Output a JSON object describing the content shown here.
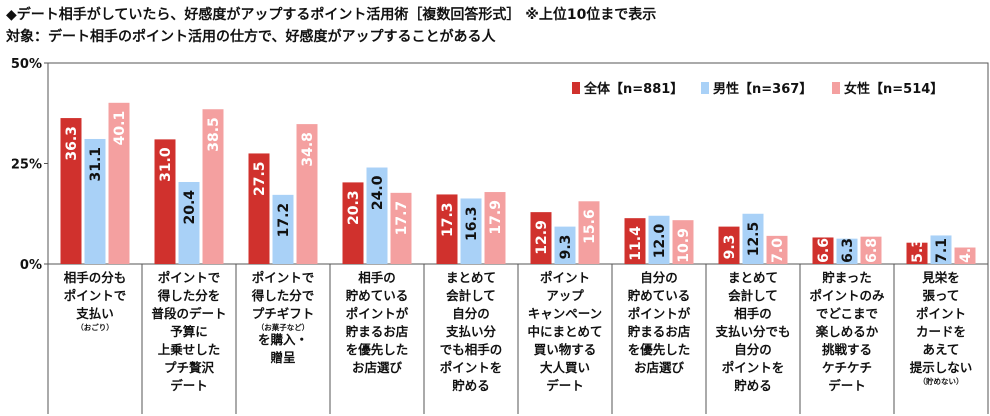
{
  "title_line1": "◆デート相手がしていたら、好感度がアップするポイント活用術［複数回答形式］ ※上位10位まで表示",
  "title_line2": "対象：デート相手のポイント活用の仕方で、好感度がアップすることがある人",
  "chart_data": {
    "type": "bar",
    "ylim": [
      0,
      50
    ],
    "yticks": [
      "0%",
      "25%",
      "50%"
    ],
    "legend_position": "top-right",
    "grid": false,
    "categories": [
      {
        "lines": [
          "相手の分も",
          "ポイントで",
          "支払い"
        ],
        "note": "（おごり）",
        "note_after": 3
      },
      {
        "lines": [
          "ポイントで",
          "得した分を",
          "普段のデート",
          "予算に",
          "上乗せした",
          "プチ贅沢",
          "デート"
        ],
        "note": "",
        "note_after": -1
      },
      {
        "lines": [
          "ポイントで",
          "得した分で",
          "プチギフト",
          "を購入・",
          "贈呈"
        ],
        "note": "（お菓子など）",
        "note_after": 3
      },
      {
        "lines": [
          "相手の",
          "貯めている",
          "ポイントが",
          "貯まるお店",
          "を優先した",
          "お店選び"
        ],
        "note": "",
        "note_after": -1
      },
      {
        "lines": [
          "まとめて",
          "会計して",
          "自分の",
          "支払い分",
          "でも相手の",
          "ポイントを",
          "貯める"
        ],
        "note": "",
        "note_after": -1
      },
      {
        "lines": [
          "ポイント",
          "アップ",
          "キャンペーン",
          "中にまとめて",
          "買い物する",
          "大人買い",
          "デート"
        ],
        "note": "",
        "note_after": -1
      },
      {
        "lines": [
          "自分の",
          "貯めている",
          "ポイントが",
          "貯まるお店",
          "を優先した",
          "お店選び"
        ],
        "note": "",
        "note_after": -1
      },
      {
        "lines": [
          "まとめて",
          "会計して",
          "相手の",
          "支払い分でも",
          "自分の",
          "ポイントを",
          "貯める"
        ],
        "note": "",
        "note_after": -1
      },
      {
        "lines": [
          "貯まった",
          "ポイントのみ",
          "でどこまで",
          "楽しめるか",
          "挑戦する",
          "ケチケチ",
          "デート"
        ],
        "note": "",
        "note_after": -1
      },
      {
        "lines": [
          "見栄を",
          "張って",
          "ポイント",
          "カードを",
          "あえて",
          "提示しない"
        ],
        "note": "（貯めない）",
        "note_after": 6
      }
    ],
    "series": [
      {
        "name": "全体【n=881】",
        "color": "#d0312d",
        "values": [
          36.3,
          31.0,
          27.5,
          20.3,
          17.3,
          12.9,
          11.4,
          9.3,
          6.6,
          5.3
        ]
      },
      {
        "name": "男性【n=367】",
        "color": "#a9d1f7",
        "values": [
          31.1,
          20.4,
          17.2,
          24.0,
          16.3,
          9.3,
          12.0,
          12.5,
          6.3,
          7.1
        ]
      },
      {
        "name": "女性【n=514】",
        "color": "#f4a0a0",
        "values": [
          40.1,
          38.5,
          34.8,
          17.7,
          17.9,
          15.6,
          10.9,
          7.0,
          6.8,
          4.1
        ]
      }
    ]
  }
}
